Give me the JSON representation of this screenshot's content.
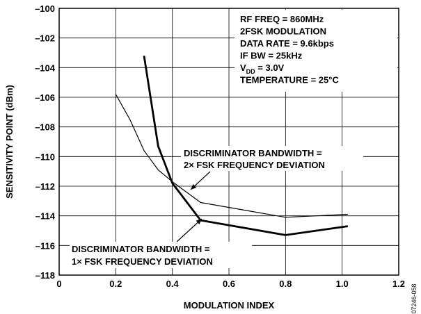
{
  "chart_data": {
    "type": "line",
    "xlabel": "MODULATION INDEX",
    "ylabel": "SENSITIVITY POINT (dBm)",
    "xlim": [
      0,
      1.2
    ],
    "ylim": [
      -118,
      -100
    ],
    "xticks": [
      0,
      0.2,
      0.4,
      0.6,
      0.8,
      1.0,
      1.2
    ],
    "xtick_labels": [
      "0",
      "0.2",
      "0.4",
      "0.6",
      "0.8",
      "1.0",
      "1.2"
    ],
    "yticks": [
      -100,
      -102,
      -104,
      -106,
      -108,
      -110,
      -112,
      -114,
      -116,
      -118
    ],
    "ytick_labels": [
      "–100",
      "–102",
      "–104",
      "–106",
      "–108",
      "–110",
      "–112",
      "–114",
      "–116",
      "–118"
    ],
    "grid": true,
    "conditions": [
      "RF FREQ = 860MHz",
      "2FSK MODULATION",
      "DATA RATE = 9.6kbps",
      "IF BW = 25kHz",
      {
        "main": "V",
        "sub": "DD",
        "rest": " = 3.0V"
      },
      "TEMPERATURE = 25°C"
    ],
    "series": [
      {
        "name": "DISCRIMINATOR BANDWIDTH = 2× FSK FREQUENCY DEVIATION",
        "label_lines": [
          "DISCRIMINATOR BANDWIDTH =",
          "2× FSK FREQUENCY DEVIATION"
        ],
        "weight": "thin",
        "points": [
          [
            0.2,
            -105.8
          ],
          [
            0.25,
            -107.5
          ],
          [
            0.3,
            -109.6
          ],
          [
            0.35,
            -110.9
          ],
          [
            0.4,
            -111.7
          ],
          [
            0.5,
            -113.1
          ],
          [
            0.8,
            -114.1
          ],
          [
            1.02,
            -113.9
          ]
        ]
      },
      {
        "name": "DISCRIMINATOR BANDWIDTH = 1× FSK FREQUENCY DEVIATION",
        "label_lines": [
          "DISCRIMINATOR BANDWIDTH =",
          "1× FSK FREQUENCY DEVIATION"
        ],
        "weight": "thick",
        "points": [
          [
            0.3,
            -103.2
          ],
          [
            0.35,
            -109.3
          ],
          [
            0.4,
            -111.8
          ],
          [
            0.5,
            -114.3
          ],
          [
            0.8,
            -115.3
          ],
          [
            1.02,
            -114.7
          ]
        ]
      }
    ],
    "figure_code": "07246-058"
  }
}
